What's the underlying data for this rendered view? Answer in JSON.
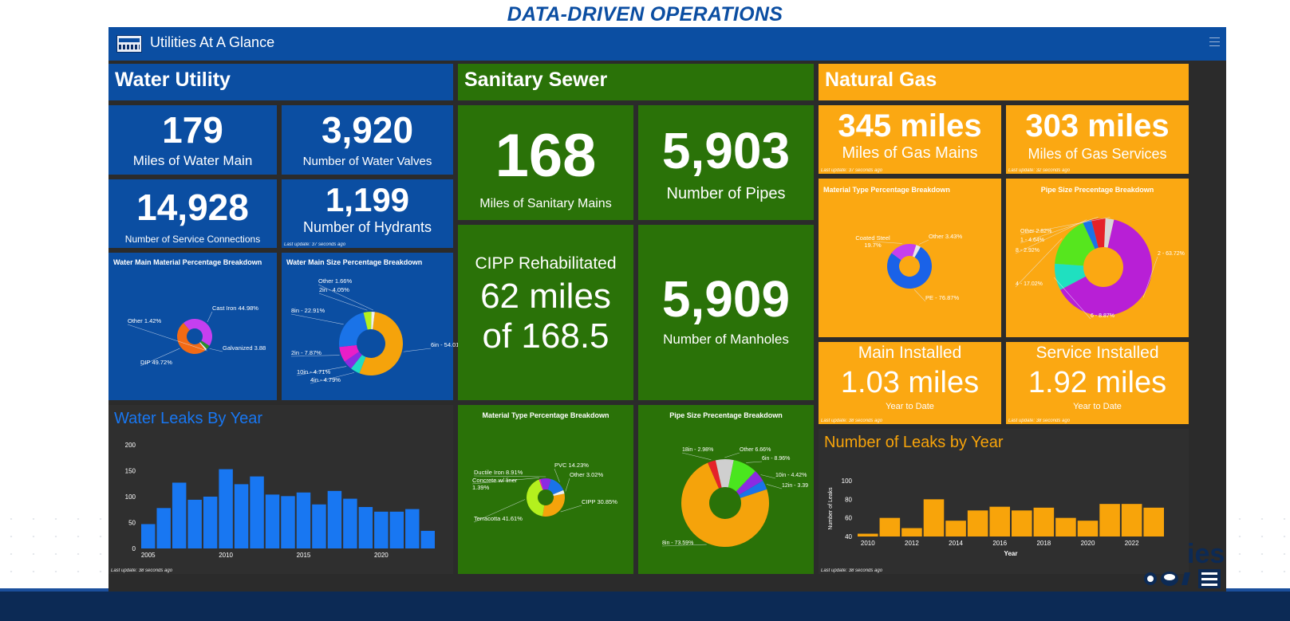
{
  "slide_title": "DATA-DRIVEN OPERATIONS",
  "app": {
    "title": "Utilities At A Glance",
    "logo_icon": "utilities-logo-icon",
    "menu_icon": "hamburger-menu-icon"
  },
  "colors": {
    "water": "#0b4ea2",
    "sewer": "#2a7208",
    "gas": "#fba812",
    "dark": "#2f2f2f",
    "bar_blue": "#1877f2",
    "bar_orange": "#f8a40a"
  },
  "water": {
    "title": "Water Utility",
    "miles_main": {
      "value": "179",
      "label": "Miles of Water Main"
    },
    "valves": {
      "value": "3,920",
      "label": "Number of Water Valves"
    },
    "service_connections": {
      "value": "14,928",
      "label": "Number of Service Connections"
    },
    "hydrants": {
      "value": "1,199",
      "label": "Number of Hydrants",
      "update": "Last update: 37 seconds ago"
    },
    "material_chart": {
      "title": "Water Main Material Percentage Breakdown",
      "slices": [
        {
          "label": "DIP 49.72%",
          "value": 49.72,
          "color": "#f26a14"
        },
        {
          "label": "Cast Iron 44.98%",
          "value": 44.98,
          "color": "#c53ff0"
        },
        {
          "label": "Galvanized 3.88",
          "value": 3.88,
          "color": "#2e8b2e"
        },
        {
          "label": "Other 1.42%",
          "value": 1.42,
          "color": "#f0f0f0"
        }
      ]
    },
    "size_chart": {
      "title": "Water Main Size Percentage Breakdown",
      "slices": [
        {
          "label": "6in - 54.01",
          "value": 54.01,
          "color": "#f5a30b"
        },
        {
          "label": "4in - 4.79%",
          "value": 4.79,
          "color": "#1fdcc4"
        },
        {
          "label": "10in - 4.71%",
          "value": 4.71,
          "color": "#8b2be2"
        },
        {
          "label": "2in - 7.87%",
          "value": 7.87,
          "color": "#e91ec8"
        },
        {
          "label": "8in - 22.91%",
          "value": 22.91,
          "color": "#1a73e8"
        },
        {
          "label": "2in - 4.05%",
          "value": 4.05,
          "color": "#b4f01e"
        },
        {
          "label": "Other 1.66%",
          "value": 1.66,
          "color": "#f0f0f0"
        }
      ]
    }
  },
  "sewer": {
    "title": "Sanitary Sewer",
    "miles": {
      "value": "168",
      "label": "Miles of Sanitary Mains"
    },
    "pipes": {
      "value": "5,903",
      "label": "Number of Pipes"
    },
    "cipp": {
      "line1": "CIPP Rehabilitated",
      "line2": "62 miles",
      "line3": "of 168.5"
    },
    "manholes": {
      "value": "5,909",
      "label": "Number of Manholes"
    },
    "material_chart": {
      "title": "Material Type Percentage Breakdown",
      "slices": [
        {
          "label": "CIPP 30.85%",
          "value": 30.85,
          "color": "#f5a30b"
        },
        {
          "label": "Terracotta 41.61%",
          "value": 41.61,
          "color": "#b4f01e"
        },
        {
          "label": "Concrete w/ liner 1.39%",
          "value": 1.39,
          "color": "#e91ec8"
        },
        {
          "label": "Ductile Iron 8.91%",
          "value": 8.91,
          "color": "#8b2be2"
        },
        {
          "label": "PVC 14.23%",
          "value": 14.23,
          "color": "#1a73e8"
        },
        {
          "label": "Other 3.02%",
          "value": 3.02,
          "color": "#f0f0f0"
        }
      ]
    },
    "size_chart": {
      "title": "Pipe Size Precentage Breakdown",
      "slices": [
        {
          "label": "8in - 73.59%",
          "value": 73.59,
          "color": "#f5a30b"
        },
        {
          "label": "18in - 2.98%",
          "value": 2.98,
          "color": "#e5222a"
        },
        {
          "label": "Other 6.66%",
          "value": 6.66,
          "color": "#cfcfcf"
        },
        {
          "label": "6in - 8.96%",
          "value": 8.96,
          "color": "#4ae61e"
        },
        {
          "label": "10in - 4.42%",
          "value": 4.42,
          "color": "#8b2be2"
        },
        {
          "label": "12in - 3.39",
          "value": 3.39,
          "color": "#1a73e8"
        }
      ]
    }
  },
  "gas": {
    "title": "Natural Gas",
    "mains": {
      "value": "345 miles",
      "label": "Miles of Gas Mains",
      "update": "Last update: 37 seconds ago"
    },
    "services": {
      "value": "303 miles",
      "label": "Miles of Gas Services",
      "update": "Last update: 32 seconds ago"
    },
    "material_chart": {
      "title": "Material Type Percentage Breakdown",
      "slices": [
        {
          "label": "PE - 76.87%",
          "value": 76.87,
          "color": "#1a62e8"
        },
        {
          "label": "Coated Steel 19.7%",
          "value": 19.7,
          "color": "#c53ff0"
        },
        {
          "label": "Other 3.43%",
          "value": 3.43,
          "color": "#e8e8e8"
        }
      ]
    },
    "size_chart": {
      "title": "Pipe Size Precentage Breakdown",
      "slices": [
        {
          "label": "2 - 63.72%",
          "value": 63.72,
          "color": "#b81fd6"
        },
        {
          "label": "6 - 8.87%",
          "value": 8.87,
          "color": "#1fe0c0"
        },
        {
          "label": "4 - 17.02%",
          "value": 17.02,
          "color": "#56e61e"
        },
        {
          "label": "8 - 2.92%",
          "value": 2.92,
          "color": "#1a73e8"
        },
        {
          "label": "1 - 4.64%",
          "value": 4.64,
          "color": "#e5222a"
        },
        {
          "label": "Other 2.82%",
          "value": 2.82,
          "color": "#d8d8d8"
        }
      ]
    },
    "main_installed": {
      "title": "Main Installed",
      "value": "1.03 miles",
      "sub": "Year to Date",
      "update": "Last update: 38 seconds ago"
    },
    "service_installed": {
      "title": "Service Installed",
      "value": "1.92 miles",
      "sub": "Year to Date",
      "update": "Last update: 38 seconds ago"
    }
  },
  "chart_data": [
    {
      "type": "bar",
      "title": "Water Leaks By Year",
      "x": [
        2005,
        2006,
        2007,
        2008,
        2009,
        2010,
        2011,
        2012,
        2013,
        2014,
        2015,
        2016,
        2017,
        2018,
        2019,
        2020,
        2021,
        2022,
        2023
      ],
      "values": [
        47,
        78,
        127,
        94,
        100,
        153,
        124,
        139,
        104,
        101,
        108,
        85,
        111,
        96,
        80,
        71,
        71,
        76,
        34
      ],
      "xticks": [
        "2005",
        "2010",
        "2015",
        "2020"
      ],
      "yticks": [
        "0",
        "50",
        "100",
        "150",
        "200"
      ],
      "ylim": [
        0,
        200
      ],
      "update": "Last update: 38 seconds ago"
    },
    {
      "type": "bar",
      "title": "Number of Leaks by Year",
      "x": [
        2010,
        2011,
        2012,
        2013,
        2014,
        2015,
        2016,
        2017,
        2018,
        2019,
        2020,
        2021,
        2022,
        2023
      ],
      "values": [
        43,
        60,
        49,
        80,
        57,
        68,
        72,
        68,
        71,
        60,
        57,
        75,
        75,
        71
      ],
      "xticks": [
        "2010",
        "2012",
        "2014",
        "2016",
        "2018",
        "2020",
        "2022"
      ],
      "yticks": [
        "40",
        "60",
        "80",
        "100"
      ],
      "ylim": [
        40,
        100
      ],
      "xlabel": "Year",
      "ylabel": "Number of Leaks",
      "update": "Last update: 38 seconds ago"
    }
  ],
  "footer_logo": {
    "text": "ies"
  }
}
